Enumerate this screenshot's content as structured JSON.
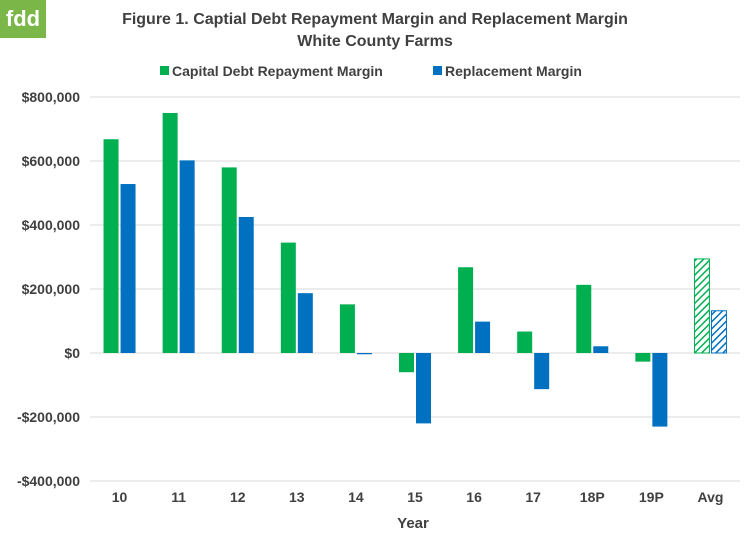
{
  "logo": {
    "text": "fdd"
  },
  "chart_data": {
    "type": "bar",
    "title": "Figure 1.  Captial Debt Repayment Margin and Replacement Margin",
    "subtitle": "White County Farms",
    "xlabel": "Year",
    "ylabel": "",
    "categories": [
      "10",
      "11",
      "12",
      "13",
      "14",
      "15",
      "16",
      "17",
      "18P",
      "19P",
      "Avg"
    ],
    "ylim": [
      -400000,
      800000
    ],
    "yticks": [
      -400000,
      -200000,
      0,
      200000,
      400000,
      600000,
      800000
    ],
    "ytick_labels": [
      "-$400,000",
      "-$200,000",
      "$0",
      "$200,000",
      "$400,000",
      "$600,000",
      "$800,000"
    ],
    "grid": true,
    "legend_position": "top",
    "hatched_categories": [
      "Avg"
    ],
    "series": [
      {
        "name": "Capital Debt Repayment Margin",
        "color": "#00b050",
        "values": [
          668000,
          750000,
          580000,
          345000,
          152000,
          -60000,
          268000,
          67000,
          213000,
          -27000,
          294000
        ]
      },
      {
        "name": "Replacement Margin",
        "color": "#0070c0",
        "values": [
          528000,
          602000,
          425000,
          187000,
          -4000,
          -220000,
          98000,
          -113000,
          21000,
          -230000,
          132000
        ]
      }
    ]
  }
}
